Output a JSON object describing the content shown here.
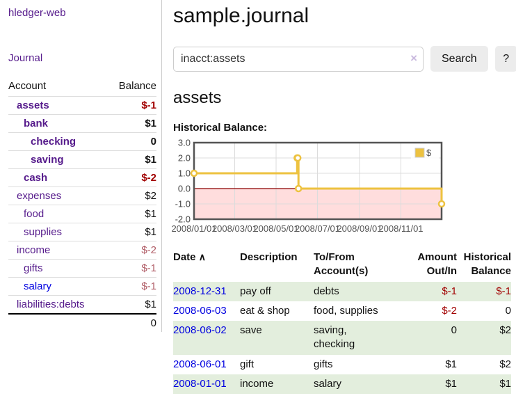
{
  "sidebar": {
    "app_title": "hledger-web",
    "nav": {
      "journal": "Journal"
    },
    "table": {
      "account_header": "Account",
      "balance_header": "Balance",
      "rows": [
        {
          "account": "assets",
          "balance": "$-1",
          "depth": 1,
          "bold": true,
          "negative": "strong"
        },
        {
          "account": "bank",
          "balance": "$1",
          "depth": 2,
          "bold": true,
          "negative": "none"
        },
        {
          "account": "checking",
          "balance": "0",
          "depth": 3,
          "bold": true,
          "negative": "none"
        },
        {
          "account": "saving",
          "balance": "$1",
          "depth": 3,
          "bold": true,
          "negative": "none"
        },
        {
          "account": "cash",
          "balance": "$-2",
          "depth": 2,
          "bold": true,
          "negative": "strong"
        },
        {
          "account": "expenses",
          "balance": "$2",
          "depth": 1,
          "bold": false,
          "negative": "none"
        },
        {
          "account": "food",
          "balance": "$1",
          "depth": 2,
          "bold": false,
          "negative": "none"
        },
        {
          "account": "supplies",
          "balance": "$1",
          "depth": 2,
          "bold": false,
          "negative": "none"
        },
        {
          "account": "income",
          "balance": "$-2",
          "depth": 1,
          "bold": false,
          "negative": "soft"
        },
        {
          "account": "gifts",
          "balance": "$-1",
          "depth": 2,
          "bold": false,
          "negative": "soft"
        },
        {
          "account": "salary",
          "balance": "$-1",
          "depth": 2,
          "bold": false,
          "negative": "soft",
          "link_color": "blue"
        },
        {
          "account": "liabilities:debts",
          "balance": "$1",
          "depth": 1,
          "bold": false,
          "negative": "none"
        }
      ],
      "total": "0"
    }
  },
  "header": {
    "title": "sample.journal"
  },
  "search": {
    "value": "inacct:assets",
    "clear_icon": "×",
    "button": "Search",
    "help_button": "?"
  },
  "account_page": {
    "title": "assets",
    "chart_label": "Historical Balance:"
  },
  "chart_data": {
    "type": "line",
    "title": "Historical Balance:",
    "x_start": "2008-01-01",
    "x_end": "2008-12-31",
    "ylim": [
      -2,
      3
    ],
    "yticks": [
      3.0,
      2.0,
      1.0,
      0.0,
      -1.0,
      -2.0
    ],
    "xticks": [
      {
        "date": "2008-01-01",
        "label": "2008/01/01"
      },
      {
        "date": "2008-03-01",
        "label": "2008/03/01"
      },
      {
        "date": "2008-05-01",
        "label": "2008/05/01"
      },
      {
        "date": "2008-07-01",
        "label": "2008/07/01"
      },
      {
        "date": "2008-09-01",
        "label": "2008/09/01"
      },
      {
        "date": "2008-11-01",
        "label": "2008/11/01"
      }
    ],
    "grid": true,
    "legend_position": "top-right",
    "series": [
      {
        "name": "$",
        "color": "#edc240",
        "style": "steps-with-points",
        "points": [
          [
            "2008-01-01",
            1
          ],
          [
            "2008-06-01",
            2
          ],
          [
            "2008-06-02",
            2
          ],
          [
            "2008-06-03",
            0
          ],
          [
            "2008-12-31",
            -1
          ]
        ]
      }
    ],
    "negative_region_color": "#ffdddd",
    "zero_line_color": "#8b0000",
    "border_color": "#545454",
    "grid_color": "#dcdcdc"
  },
  "register_table": {
    "headers": {
      "date": "Date",
      "sort_icon": "∧",
      "description": "Description",
      "tofrom": "To/From Account(s)",
      "amount": "Amount Out/In",
      "balance": "Historical Balance"
    },
    "rows": [
      {
        "date": "2008-12-31",
        "description": "pay off",
        "accounts": "debts",
        "amount": "$-1",
        "balance": "$-1",
        "amount_negative": true,
        "balance_negative": true,
        "shaded": true
      },
      {
        "date": "2008-06-03",
        "description": "eat & shop",
        "accounts": "food, supplies",
        "amount": "$-2",
        "balance": "0",
        "amount_negative": true,
        "balance_negative": false,
        "shaded": false
      },
      {
        "date": "2008-06-02",
        "description": "save",
        "accounts": "saving, checking",
        "amount": "0",
        "balance": "$2",
        "amount_negative": false,
        "balance_negative": false,
        "shaded": true
      },
      {
        "date": "2008-06-01",
        "description": "gift",
        "accounts": "gifts",
        "amount": "$1",
        "balance": "$2",
        "amount_negative": false,
        "balance_negative": false,
        "shaded": false
      },
      {
        "date": "2008-01-01",
        "description": "income",
        "accounts": "salary",
        "amount": "$1",
        "balance": "$1",
        "amount_negative": false,
        "balance_negative": false,
        "shaded": true
      }
    ]
  },
  "colors": {
    "link_purple": "#551a8b",
    "link_blue": "#0000e0",
    "negative_strong": "#a10000",
    "negative_soft": "#b05c66",
    "row_green": "#e3eedd",
    "chart_line": "#edc240",
    "chart_negative_fill": "#ffdddd",
    "chart_zero_line": "#8b0000",
    "chart_border": "#545454"
  }
}
